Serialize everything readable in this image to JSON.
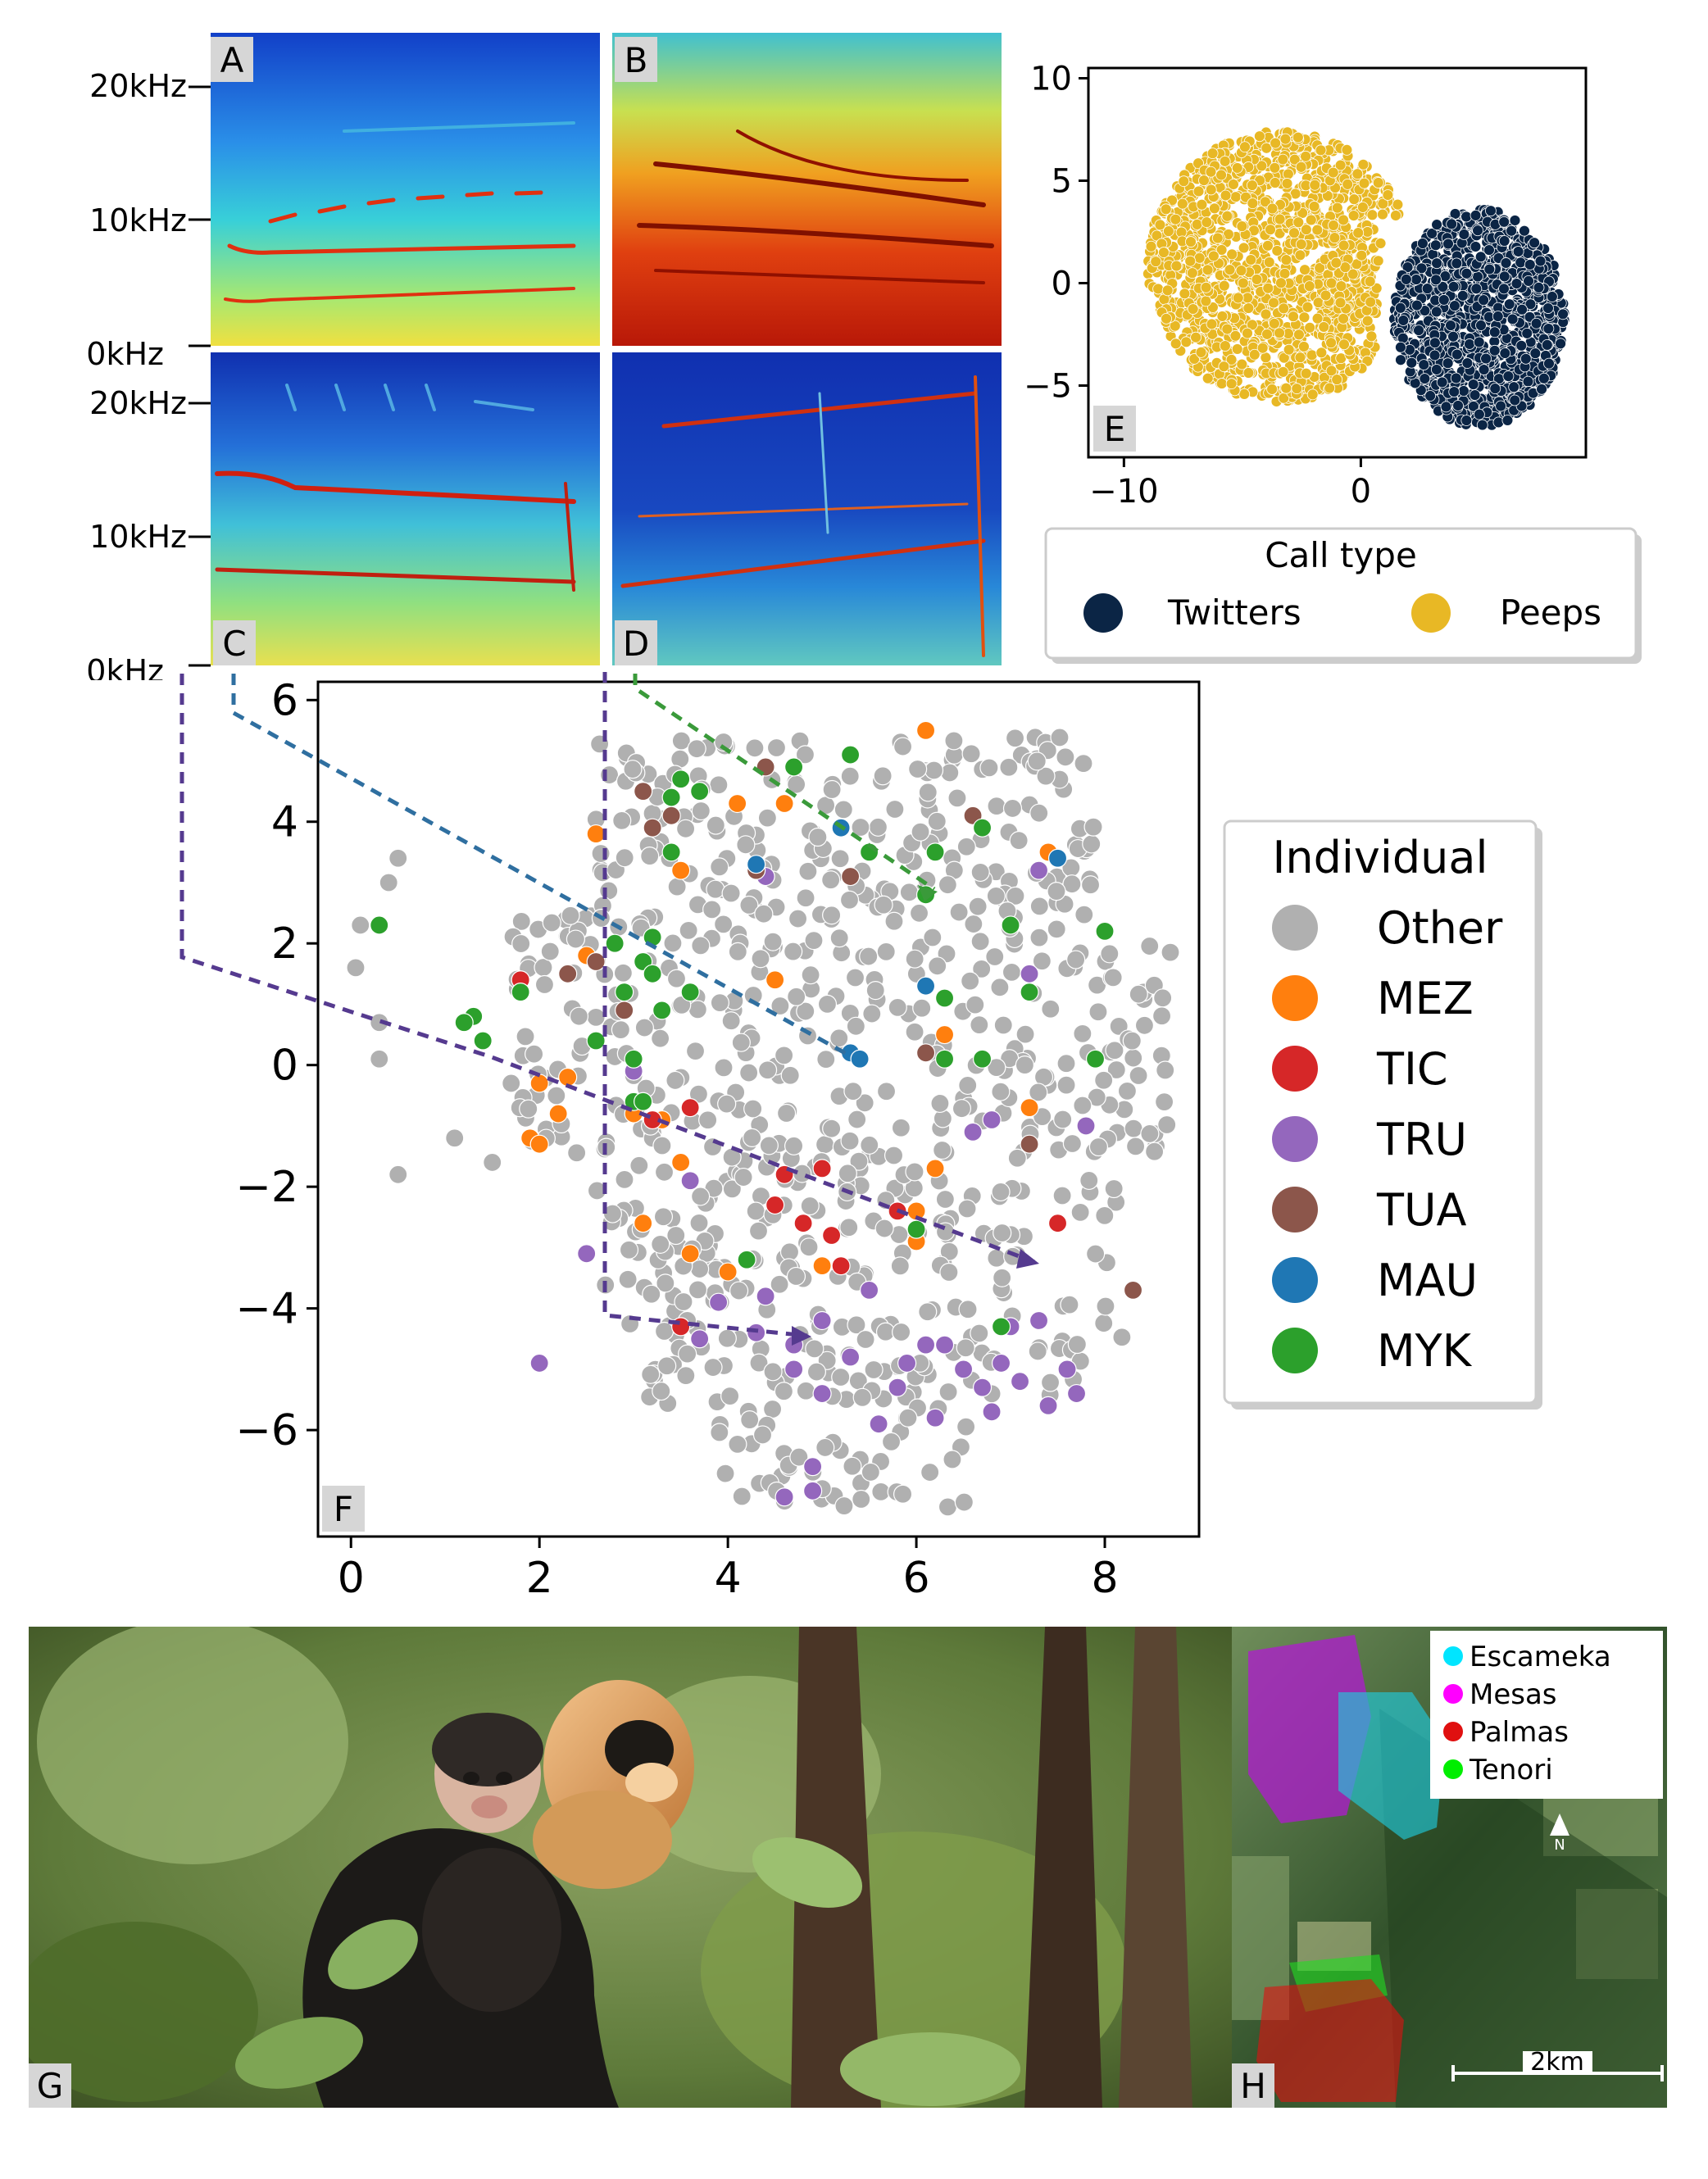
{
  "panel_labels": {
    "A": "A",
    "B": "B",
    "C": "C",
    "D": "D",
    "E": "E",
    "F": "F",
    "G": "G",
    "H": "H"
  },
  "spectrograms": {
    "freq_labels_top": [
      "20kHz",
      "10kHz",
      "0kHz"
    ],
    "freq_labels_bottom": [
      "20kHz",
      "10kHz",
      "0kHz"
    ]
  },
  "colors": {
    "twitters": "#0b2545",
    "peeps": "#e8b825",
    "Other": "#b0b0b0",
    "MEZ": "#ff7f0e",
    "TIC": "#d62728",
    "TRU": "#9467bd",
    "TUA": "#8c564b",
    "MAU": "#1f77b4",
    "MYK": "#2ca02c",
    "escameka": "#00e5ff",
    "mesas": "#ff00ff",
    "palmas": "#e01010",
    "tenori": "#00ee00"
  },
  "chart_data": [
    {
      "type": "scatter",
      "panel": "E",
      "xlim": [
        -11.5,
        9.5
      ],
      "ylim": [
        -8.5,
        10.5
      ],
      "xticks": [
        -10,
        0
      ],
      "yticks": [
        10,
        5,
        0,
        -5
      ],
      "legend": {
        "title": "Call type",
        "placement": "below",
        "entries": [
          "Twitters",
          "Peeps"
        ]
      },
      "series": [
        {
          "name": "Peeps",
          "region": {
            "type": "ellipse",
            "cx": -3.4,
            "cy": 0.8,
            "rx": 5.6,
            "ry": 6.6,
            "count": 1500
          }
        },
        {
          "name": "Twitters",
          "region": {
            "type": "ellipse",
            "cx": 5.0,
            "cy": -1.7,
            "rx": 3.6,
            "ry": 5.3,
            "count": 1100
          }
        }
      ],
      "grid": false
    },
    {
      "type": "scatter",
      "panel": "F",
      "xlim": [
        -0.35,
        9.0
      ],
      "ylim": [
        -7.75,
        6.3
      ],
      "xticks": [
        0,
        2,
        4,
        6,
        8
      ],
      "yticks": [
        6,
        4,
        2,
        0,
        -2,
        -4,
        -6
      ],
      "legend": {
        "title": "Individual",
        "placement": "right",
        "entries": [
          "Other",
          "MEZ",
          "TIC",
          "TRU",
          "TUA",
          "MAU",
          "MYK"
        ]
      },
      "grid": false,
      "series": [
        {
          "name": "Other",
          "count": 800
        },
        {
          "name": "MEZ",
          "points": [
            [
              2.6,
              3.8
            ],
            [
              2.5,
              1.8
            ],
            [
              2.0,
              -0.3
            ],
            [
              1.9,
              -1.2
            ],
            [
              2.2,
              -0.8
            ],
            [
              3.0,
              -0.8
            ],
            [
              3.1,
              -2.6
            ],
            [
              3.5,
              -1.6
            ],
            [
              3.3,
              -0.9
            ],
            [
              3.5,
              3.2
            ],
            [
              4.1,
              4.3
            ],
            [
              4.6,
              4.3
            ],
            [
              5.0,
              -3.3
            ],
            [
              6.1,
              5.5
            ],
            [
              6.0,
              -2.4
            ],
            [
              6.0,
              -2.9
            ],
            [
              6.3,
              0.5
            ],
            [
              6.2,
              -1.7
            ],
            [
              7.4,
              3.5
            ],
            [
              7.2,
              -0.7
            ],
            [
              3.6,
              -3.1
            ],
            [
              4.5,
              1.4
            ],
            [
              4.0,
              -3.4
            ],
            [
              2.3,
              -0.2
            ],
            [
              2.0,
              -1.3
            ]
          ]
        },
        {
          "name": "TIC",
          "points": [
            [
              1.8,
              1.4
            ],
            [
              3.5,
              -4.3
            ],
            [
              3.6,
              -0.7
            ],
            [
              4.2,
              -3.2
            ],
            [
              4.5,
              -2.3
            ],
            [
              4.6,
              -1.8
            ],
            [
              4.8,
              -2.6
            ],
            [
              5.0,
              -1.7
            ],
            [
              5.1,
              -2.8
            ],
            [
              5.2,
              -3.3
            ],
            [
              5.8,
              -2.4
            ],
            [
              7.5,
              -2.6
            ],
            [
              3.2,
              -0.9
            ]
          ]
        },
        {
          "name": "TRU",
          "points": [
            [
              2.5,
              -3.1
            ],
            [
              2.0,
              -4.9
            ],
            [
              3.0,
              -0.1
            ],
            [
              3.6,
              -1.9
            ],
            [
              4.3,
              -4.4
            ],
            [
              4.7,
              -4.6
            ],
            [
              5.0,
              -4.2
            ],
            [
              5.3,
              -4.8
            ],
            [
              5.8,
              -5.3
            ],
            [
              6.1,
              -4.6
            ],
            [
              6.5,
              -5.0
            ],
            [
              6.7,
              -5.3
            ],
            [
              6.9,
              -4.9
            ],
            [
              7.1,
              -5.2
            ],
            [
              7.3,
              -4.2
            ],
            [
              7.4,
              -5.6
            ],
            [
              7.6,
              -5.0
            ],
            [
              6.2,
              -5.8
            ],
            [
              5.6,
              -5.9
            ],
            [
              4.9,
              -6.6
            ],
            [
              4.6,
              -7.1
            ],
            [
              4.9,
              -7.0
            ],
            [
              6.6,
              -1.1
            ],
            [
              7.2,
              1.5
            ],
            [
              7.3,
              3.2
            ],
            [
              5.5,
              -3.7
            ],
            [
              3.9,
              -3.9
            ],
            [
              4.4,
              -3.8
            ],
            [
              5.9,
              -4.9
            ],
            [
              6.8,
              -5.7
            ],
            [
              7.7,
              -5.4
            ],
            [
              6.3,
              -4.6
            ],
            [
              4.7,
              -5.0
            ],
            [
              7.0,
              -4.3
            ],
            [
              5.0,
              -5.4
            ],
            [
              3.7,
              -4.5
            ],
            [
              4.4,
              3.1
            ],
            [
              6.8,
              -0.9
            ],
            [
              7.8,
              -1.0
            ]
          ]
        },
        {
          "name": "TUA",
          "points": [
            [
              2.3,
              1.5
            ],
            [
              2.6,
              1.7
            ],
            [
              3.1,
              4.5
            ],
            [
              3.2,
              3.9
            ],
            [
              3.4,
              4.1
            ],
            [
              4.3,
              3.2
            ],
            [
              4.4,
              4.9
            ],
            [
              5.3,
              3.1
            ],
            [
              6.6,
              4.1
            ],
            [
              7.2,
              -1.3
            ],
            [
              8.3,
              -3.7
            ],
            [
              6.1,
              0.2
            ],
            [
              2.9,
              0.9
            ]
          ]
        },
        {
          "name": "MAU",
          "points": [
            [
              5.3,
              0.2
            ],
            [
              5.4,
              0.1
            ],
            [
              5.2,
              3.9
            ],
            [
              6.1,
              1.3
            ],
            [
              4.3,
              3.3
            ],
            [
              7.5,
              3.4
            ]
          ]
        },
        {
          "name": "MYK",
          "points": [
            [
              0.3,
              2.3
            ],
            [
              1.3,
              0.8
            ],
            [
              1.2,
              0.7
            ],
            [
              1.4,
              0.4
            ],
            [
              1.8,
              1.2
            ],
            [
              2.6,
              0.4
            ],
            [
              2.8,
              2.0
            ],
            [
              2.9,
              1.2
            ],
            [
              3.0,
              -0.6
            ],
            [
              3.1,
              1.7
            ],
            [
              3.2,
              1.5
            ],
            [
              3.3,
              0.9
            ],
            [
              3.4,
              4.4
            ],
            [
              3.5,
              4.7
            ],
            [
              3.6,
              1.2
            ],
            [
              3.7,
              4.5
            ],
            [
              3.4,
              3.5
            ],
            [
              4.2,
              -3.2
            ],
            [
              4.7,
              4.9
            ],
            [
              5.3,
              5.1
            ],
            [
              5.5,
              3.5
            ],
            [
              6.1,
              2.8
            ],
            [
              6.2,
              3.5
            ],
            [
              6.3,
              1.1
            ],
            [
              6.3,
              0.1
            ],
            [
              6.7,
              0.1
            ],
            [
              6.9,
              -4.3
            ],
            [
              7.0,
              2.3
            ],
            [
              7.2,
              1.2
            ],
            [
              7.9,
              0.1
            ],
            [
              8.0,
              2.2
            ],
            [
              6.7,
              3.9
            ],
            [
              3.2,
              2.1
            ],
            [
              3.1,
              -0.6
            ],
            [
              6.0,
              -2.7
            ],
            [
              3.0,
              0.1
            ]
          ]
        }
      ]
    }
  ],
  "map": {
    "legend": [
      "Escameka",
      "Mesas",
      "Palmas",
      "Tenori"
    ],
    "scale_label": "2km",
    "north_label": "N"
  }
}
